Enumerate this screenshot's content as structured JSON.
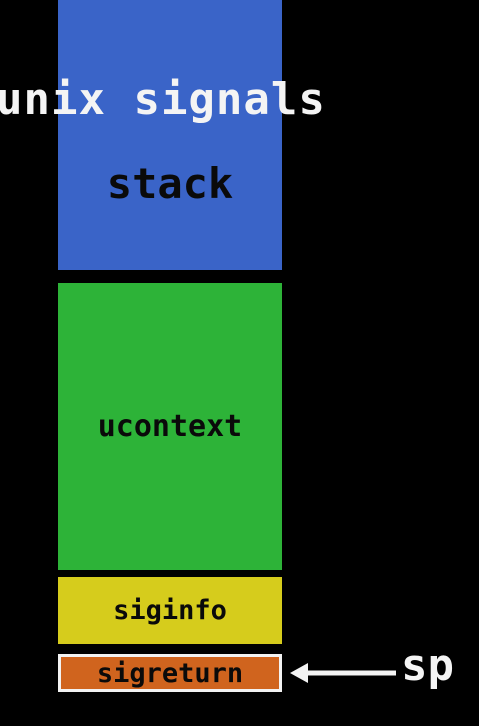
{
  "title": "unix signals",
  "stack": {
    "blocks": [
      {
        "label": "stack",
        "color": "#3a64c8"
      },
      {
        "label": "ucontext",
        "color": "#2db338"
      },
      {
        "label": "siginfo",
        "color": "#d6cc1c"
      },
      {
        "label": "sigreturn",
        "color": "#d0641e"
      }
    ]
  },
  "pointer": {
    "label": "sp",
    "target": "sigreturn",
    "icon": "left-arrow-icon"
  },
  "colors": {
    "background": "#000000",
    "text": "#f4f4f4",
    "block_text": "#0a0a0a"
  }
}
